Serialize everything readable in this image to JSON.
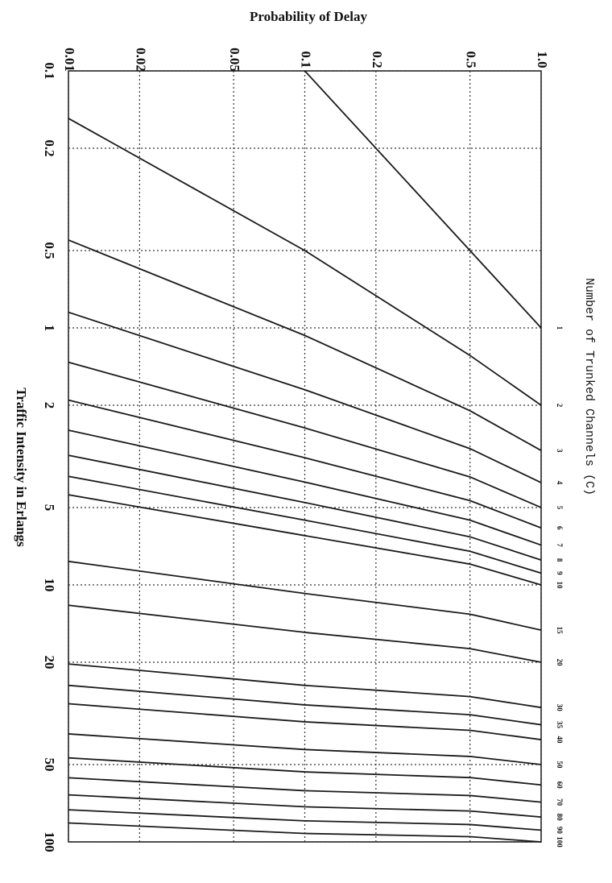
{
  "chart_data": {
    "type": "line",
    "ylabel": "Probability of Delay",
    "xlabel": "Traffic Intensity in Erlangs",
    "legend_title": "Number of Trunked Channels (C)",
    "xscale": "log",
    "yscale": "log",
    "grid": true,
    "color": "#1a1a1a",
    "xlim": [
      0.1,
      100
    ],
    "ylim": [
      0.01,
      1
    ],
    "xticks": [
      0.1,
      0.2,
      0.5,
      1,
      2,
      5,
      10,
      20,
      50,
      100
    ],
    "yticks": [
      0.01,
      0.02,
      0.05,
      0.1,
      0.2,
      0.5,
      {
        "value": 1,
        "label": "1.0"
      }
    ],
    "series": [
      {
        "name": "1",
        "x": [
          0.1,
          0.5,
          1
        ],
        "values": [
          0.1,
          0.5,
          1
        ]
      },
      {
        "name": "2",
        "x": [
          0.153,
          0.5,
          1.28,
          2
        ],
        "values": [
          0.01,
          0.1,
          0.5,
          1
        ]
      },
      {
        "name": "3",
        "x": [
          0.455,
          1.07,
          2.1,
          3
        ],
        "values": [
          0.01,
          0.1,
          0.5,
          1
        ]
      },
      {
        "name": "4",
        "x": [
          0.869,
          1.74,
          2.95,
          4
        ],
        "values": [
          0.01,
          0.1,
          0.5,
          1
        ]
      },
      {
        "name": "5",
        "x": [
          1.36,
          2.45,
          3.8,
          5
        ],
        "values": [
          0.01,
          0.1,
          0.5,
          1
        ]
      },
      {
        "name": "6",
        "x": [
          1.91,
          3.2,
          4.7,
          6
        ],
        "values": [
          0.01,
          0.1,
          0.5,
          1
        ]
      },
      {
        "name": "7",
        "x": [
          2.5,
          3.98,
          5.6,
          7
        ],
        "values": [
          0.01,
          0.1,
          0.5,
          1
        ]
      },
      {
        "name": "8",
        "x": [
          3.13,
          4.78,
          6.5,
          8
        ],
        "values": [
          0.01,
          0.1,
          0.5,
          1
        ]
      },
      {
        "name": "9",
        "x": [
          3.78,
          5.6,
          7.4,
          9
        ],
        "values": [
          0.01,
          0.1,
          0.5,
          1
        ]
      },
      {
        "name": "10",
        "x": [
          4.46,
          6.43,
          8.3,
          10
        ],
        "values": [
          0.01,
          0.1,
          0.5,
          1
        ]
      },
      {
        "name": "15",
        "x": [
          8.1,
          10.8,
          13,
          15
        ],
        "values": [
          0.01,
          0.1,
          0.5,
          1
        ]
      },
      {
        "name": "20",
        "x": [
          12,
          15.3,
          17.7,
          20
        ],
        "values": [
          0.01,
          0.1,
          0.5,
          1
        ]
      },
      {
        "name": "30",
        "x": [
          20.3,
          24.6,
          27.2,
          30
        ],
        "values": [
          0.01,
          0.1,
          0.5,
          1
        ]
      },
      {
        "name": "35",
        "x": [
          24.6,
          29.3,
          32,
          35
        ],
        "values": [
          0.01,
          0.1,
          0.5,
          1
        ]
      },
      {
        "name": "40",
        "x": [
          29,
          34.1,
          36.8,
          40
        ],
        "values": [
          0.01,
          0.1,
          0.5,
          1
        ]
      },
      {
        "name": "50",
        "x": [
          38,
          43.7,
          46.5,
          50
        ],
        "values": [
          0.01,
          0.1,
          0.5,
          1
        ]
      },
      {
        "name": "60",
        "x": [
          47.1,
          53.4,
          56.2,
          60
        ],
        "values": [
          0.01,
          0.1,
          0.5,
          1
        ]
      },
      {
        "name": "70",
        "x": [
          56.3,
          63.2,
          66,
          70
        ],
        "values": [
          0.01,
          0.1,
          0.5,
          1
        ]
      },
      {
        "name": "80",
        "x": [
          65.6,
          73,
          75.8,
          80
        ],
        "values": [
          0.01,
          0.1,
          0.5,
          1
        ]
      },
      {
        "name": "90",
        "x": [
          75,
          82.8,
          85.6,
          90
        ],
        "values": [
          0.01,
          0.1,
          0.5,
          1
        ]
      },
      {
        "name": "100",
        "x": [
          84.4,
          92.7,
          95.4,
          100
        ],
        "values": [
          0.01,
          0.1,
          0.5,
          1
        ]
      }
    ]
  }
}
